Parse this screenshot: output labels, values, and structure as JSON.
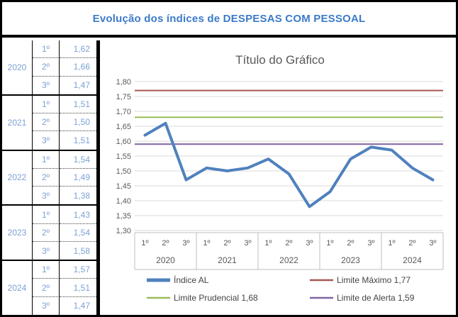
{
  "window": {
    "title": "Evolução dos índices de DESPESAS COM PESSOAL"
  },
  "table": {
    "groups": [
      {
        "year": "2020",
        "rows": [
          {
            "quarter": "1º",
            "value": "1,62"
          },
          {
            "quarter": "2º",
            "value": "1,66"
          },
          {
            "quarter": "3º",
            "value": "1,47"
          }
        ]
      },
      {
        "year": "2021",
        "rows": [
          {
            "quarter": "1º",
            "value": "1,51"
          },
          {
            "quarter": "2º",
            "value": "1,50"
          },
          {
            "quarter": "3º",
            "value": "1,51"
          }
        ]
      },
      {
        "year": "2022",
        "rows": [
          {
            "quarter": "1º",
            "value": "1,54"
          },
          {
            "quarter": "2º",
            "value": "1,49"
          },
          {
            "quarter": "3º",
            "value": "1,38"
          }
        ]
      },
      {
        "year": "2023",
        "rows": [
          {
            "quarter": "1º",
            "value": "1,43"
          },
          {
            "quarter": "2º",
            "value": "1,54"
          },
          {
            "quarter": "3º",
            "value": "1,58"
          }
        ]
      },
      {
        "year": "2024",
        "rows": [
          {
            "quarter": "1º",
            "value": "1,57"
          },
          {
            "quarter": "2º",
            "value": "1,51"
          },
          {
            "quarter": "3º",
            "value": "1,47"
          }
        ]
      }
    ]
  },
  "chart_data": {
    "type": "line",
    "title": "Título do Gráfico",
    "title_color": "#595959",
    "ylim": [
      1.3,
      1.8
    ],
    "ytick_step": 0.05,
    "ytick_labels": [
      "1,30",
      "1,35",
      "1,40",
      "1,45",
      "1,50",
      "1,55",
      "1,60",
      "1,65",
      "1,70",
      "1,75",
      "1,80"
    ],
    "grid": true,
    "gridline_color": "#d9d9d9",
    "axis_text_color": "#595959",
    "axis_table_border_color": "#bfbfbf",
    "x_groups": [
      {
        "year": "2020",
        "quarters": [
          "1º",
          "2º",
          "3º"
        ]
      },
      {
        "year": "2021",
        "quarters": [
          "1º",
          "2º",
          "3º"
        ]
      },
      {
        "year": "2022",
        "quarters": [
          "1º",
          "2º",
          "3º"
        ]
      },
      {
        "year": "2023",
        "quarters": [
          "1º",
          "2º",
          "3º"
        ]
      },
      {
        "year": "2024",
        "quarters": [
          "1º",
          "2º",
          "3º"
        ]
      }
    ],
    "series": [
      {
        "name": "Índice AL",
        "type": "line",
        "color": "#4f81bd",
        "width": 4,
        "values": [
          1.62,
          1.66,
          1.47,
          1.51,
          1.5,
          1.51,
          1.54,
          1.49,
          1.38,
          1.43,
          1.54,
          1.58,
          1.57,
          1.51,
          1.47
        ]
      },
      {
        "name": "Limite Máximo 1,77",
        "type": "constant",
        "color": "#a65652",
        "width": 2,
        "constant": 1.77
      },
      {
        "name": "Limite Prudencial 1,68",
        "type": "constant",
        "color": "#9bbb59",
        "width": 2,
        "constant": 1.68
      },
      {
        "name": "Limite de Alerta 1,59",
        "type": "constant",
        "color": "#8064a2",
        "width": 2,
        "constant": 1.59
      }
    ],
    "legend_position": "bottom",
    "legend_text_color": "#444444",
    "legend_order_grid": [
      [
        0,
        1
      ],
      [
        2,
        3
      ]
    ]
  }
}
